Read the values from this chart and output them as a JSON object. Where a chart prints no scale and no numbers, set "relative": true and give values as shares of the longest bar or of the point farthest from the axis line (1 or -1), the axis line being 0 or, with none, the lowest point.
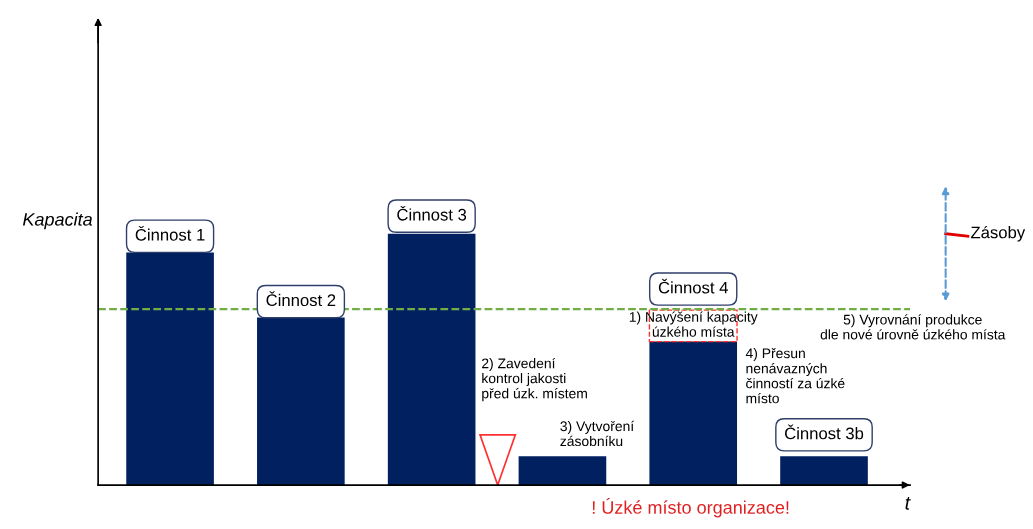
{
  "chart_data": {
    "type": "bar",
    "relative": true,
    "xlabel": "t",
    "ylabel": "Kapacita",
    "categories": [
      null,
      null,
      null,
      null,
      null,
      null
    ],
    "series": [
      {
        "color": "#002060",
        "values": [
          0.925,
          0.667,
          1,
          0.115,
          0.571,
          0.115
        ]
      }
    ],
    "ref_lines": [
      {
        "axis": "y",
        "value": 0.7,
        "label": "5) Vyrovnání produkce\ndle nové úrovně úzkého místa",
        "color": "#70ad47",
        "line_style": "dashed"
      }
    ],
    "annotations": [
      "Činnost 1",
      "Činnost 2",
      "Činnost 3",
      "Činnost 4",
      "Činnost 3b",
      "1) Navýšení kapacity\núzkého místa",
      "2) Zavedení\nkontrol jakosti\npřed úzk. místem",
      "3) Vytvoření\nzásobníku",
      "4) Přesun\nnenávazných\nčinností za úzké\nmísto",
      "! Úzké místo organizace!",
      "Zásoby"
    ],
    "legend": false
  }
}
